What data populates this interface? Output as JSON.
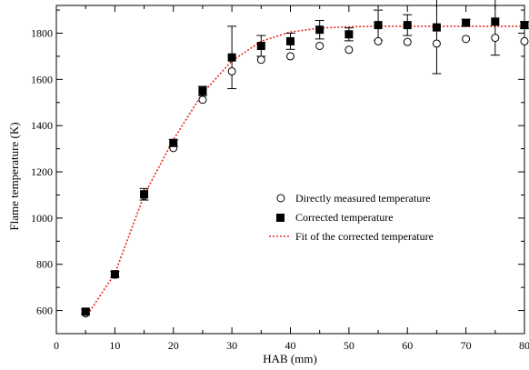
{
  "chart_data": {
    "type": "scatter",
    "xlabel": "HAB (mm)",
    "ylabel": "Flame temperature (K)",
    "xlim": [
      0,
      80
    ],
    "ylim": [
      500,
      1920
    ],
    "xticks": [
      0,
      10,
      20,
      30,
      40,
      50,
      60,
      70,
      80
    ],
    "yticks": [
      600,
      800,
      1000,
      1200,
      1400,
      1600,
      1800
    ],
    "grid": false,
    "legend_position": "center-right",
    "series": [
      {
        "name": "Directly measured temperature",
        "marker": "open-circle",
        "color": "#000000",
        "x": [
          5,
          10,
          15,
          20,
          25,
          30,
          35,
          40,
          45,
          50,
          55,
          60,
          65,
          70,
          75,
          80
        ],
        "y": [
          588,
          755,
          1097,
          1303,
          1512,
          1635,
          1685,
          1700,
          1745,
          1728,
          1765,
          1762,
          1755,
          1775,
          1780,
          1765
        ]
      },
      {
        "name": "Corrected temperature",
        "marker": "filled-square",
        "color": "#000000",
        "x": [
          5,
          10,
          15,
          20,
          25,
          30,
          35,
          40,
          45,
          50,
          55,
          60,
          65,
          70,
          75,
          80
        ],
        "y": [
          595,
          757,
          1103,
          1325,
          1550,
          1695,
          1745,
          1765,
          1815,
          1795,
          1835,
          1835,
          1825,
          1845,
          1850,
          1835
        ],
        "error": [
          10,
          12,
          25,
          15,
          20,
          135,
          45,
          35,
          40,
          28,
          65,
          45,
          200,
          15,
          145,
          15
        ]
      },
      {
        "name": "Fit of the corrected temperature",
        "line_style": "dotted",
        "color": "#e8281e",
        "x": [
          5,
          10,
          15,
          20,
          25,
          30,
          35,
          40,
          45,
          50,
          55,
          60,
          65,
          70,
          75,
          80
        ],
        "y": [
          570,
          760,
          1100,
          1340,
          1540,
          1680,
          1765,
          1805,
          1822,
          1828,
          1830,
          1830,
          1830,
          1830,
          1830,
          1830
        ]
      }
    ]
  }
}
